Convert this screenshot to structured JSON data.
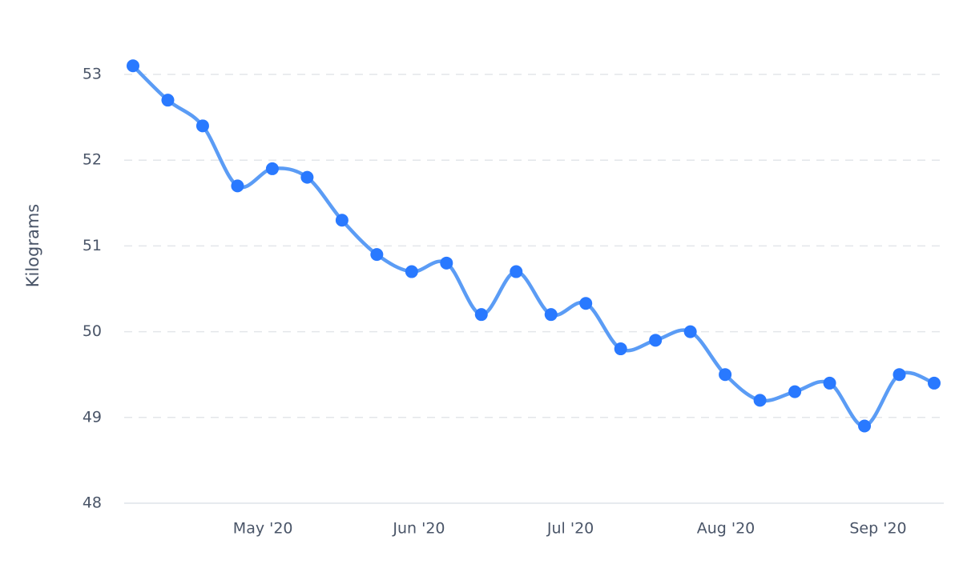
{
  "chart_data": {
    "type": "line",
    "y_label": "Kilograms",
    "categories": [
      null,
      null,
      null,
      null,
      null,
      null,
      null,
      null,
      null,
      null,
      null,
      null,
      null,
      null,
      null,
      null,
      null,
      null,
      null,
      null,
      null,
      null,
      null,
      null
    ],
    "values": [
      53.1,
      52.7,
      52.4,
      51.7,
      51.9,
      51.8,
      51.3,
      50.9,
      50.7,
      50.8,
      50.2,
      50.7,
      50.2,
      50.33,
      49.8,
      49.9,
      50.0,
      49.5,
      49.2,
      49.3,
      49.4,
      48.9,
      49.5,
      49.4
    ],
    "line_color": "#5b9cf5",
    "marker_color": "#2979ff",
    "ylim": [
      48,
      53
    ],
    "yticks": [
      48,
      49,
      50,
      51,
      52,
      53
    ],
    "grid": true,
    "xticks": [
      {
        "value": 3.73,
        "label": "May '20"
      },
      {
        "value": 8.21,
        "label": "Jun '20"
      },
      {
        "value": 12.56,
        "label": "Jul '20"
      },
      {
        "value": 17.02,
        "label": "Aug '20"
      },
      {
        "value": 21.39,
        "label": "Sep '20"
      }
    ]
  }
}
